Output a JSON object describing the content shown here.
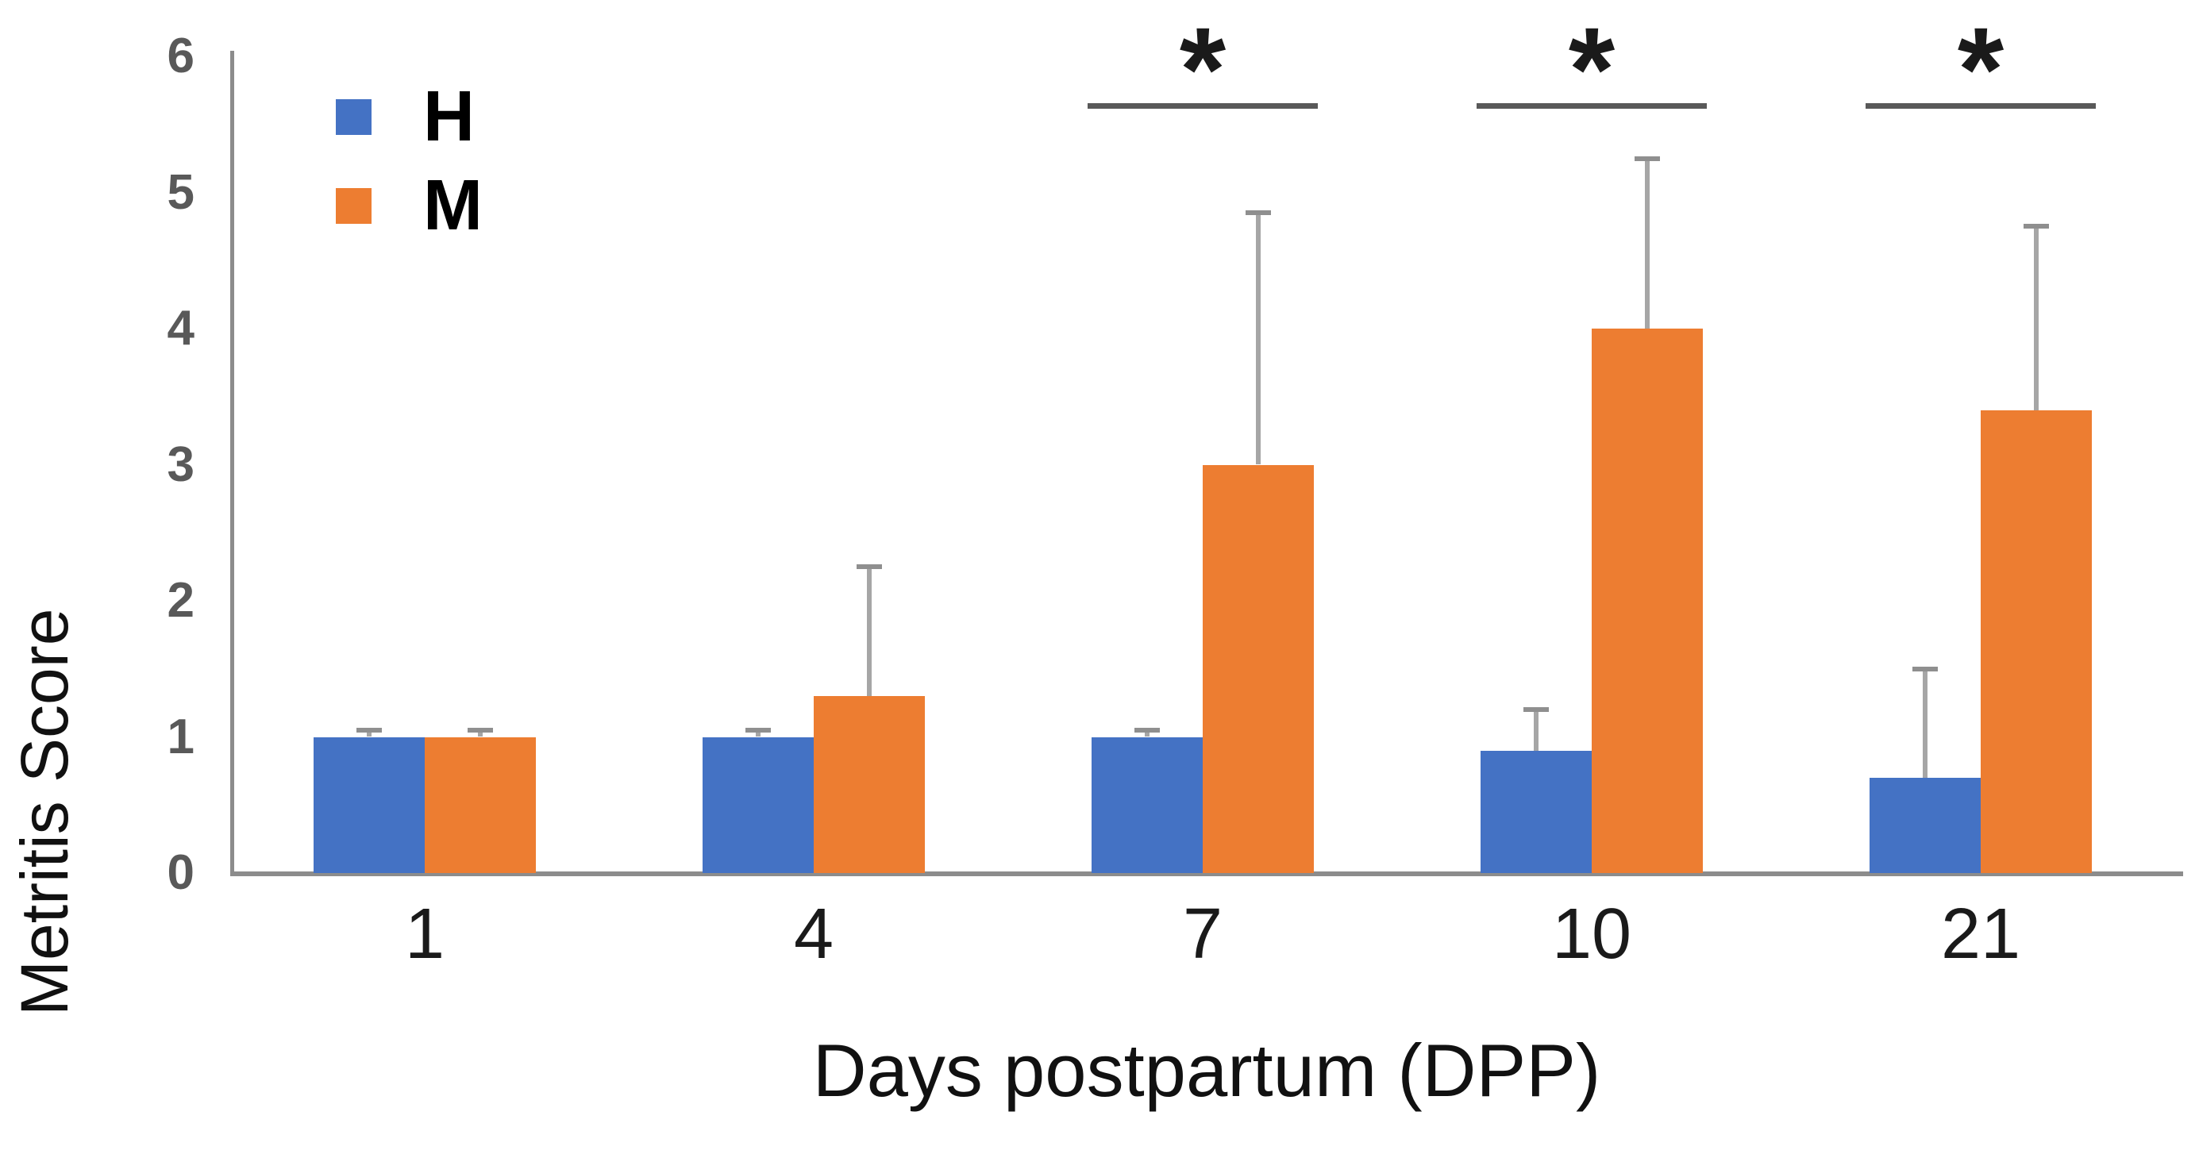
{
  "figure": {
    "kind": "grouped bar chart with error bars and significance markers",
    "background": "#ffffff"
  },
  "chart_data": {
    "type": "bar",
    "title": "",
    "xlabel": "Days postpartum (DPP)",
    "ylabel": "Metritis Score",
    "categories": [
      "1",
      "4",
      "7",
      "10",
      "21"
    ],
    "series": [
      {
        "name": "H",
        "color": "#4472C4",
        "values": [
          1.0,
          1.0,
          1.0,
          0.9,
          0.7
        ],
        "error_up": [
          0.05,
          0.05,
          0.05,
          0.3,
          0.8
        ]
      },
      {
        "name": "M",
        "color": "#ED7D31",
        "values": [
          1.0,
          1.3,
          3.0,
          4.0,
          3.4
        ],
        "error_up": [
          0.05,
          0.95,
          1.85,
          1.25,
          1.35
        ]
      }
    ],
    "y_axis": {
      "min": 0,
      "max": 6,
      "tick_step": 1,
      "tick_labels": [
        "0",
        "1",
        "2",
        "3",
        "4",
        "5",
        "6"
      ]
    },
    "grid": false,
    "legend": {
      "position": "top-left-inside",
      "entries": [
        "H",
        "M"
      ]
    },
    "error_bars": "upward whiskers with caps, gray",
    "significance": [
      {
        "category": "7",
        "label": "*"
      },
      {
        "category": "10",
        "label": "*"
      },
      {
        "category": "21",
        "label": "*"
      }
    ],
    "colors": {
      "axis_line": "#8c8c8c",
      "y_tick_text": "#595959",
      "x_tick_text": "#1a1a1a",
      "error_bar": "#a6a6a6",
      "sig_marker": "#595959",
      "sig_star": "#1a1a1a"
    }
  }
}
